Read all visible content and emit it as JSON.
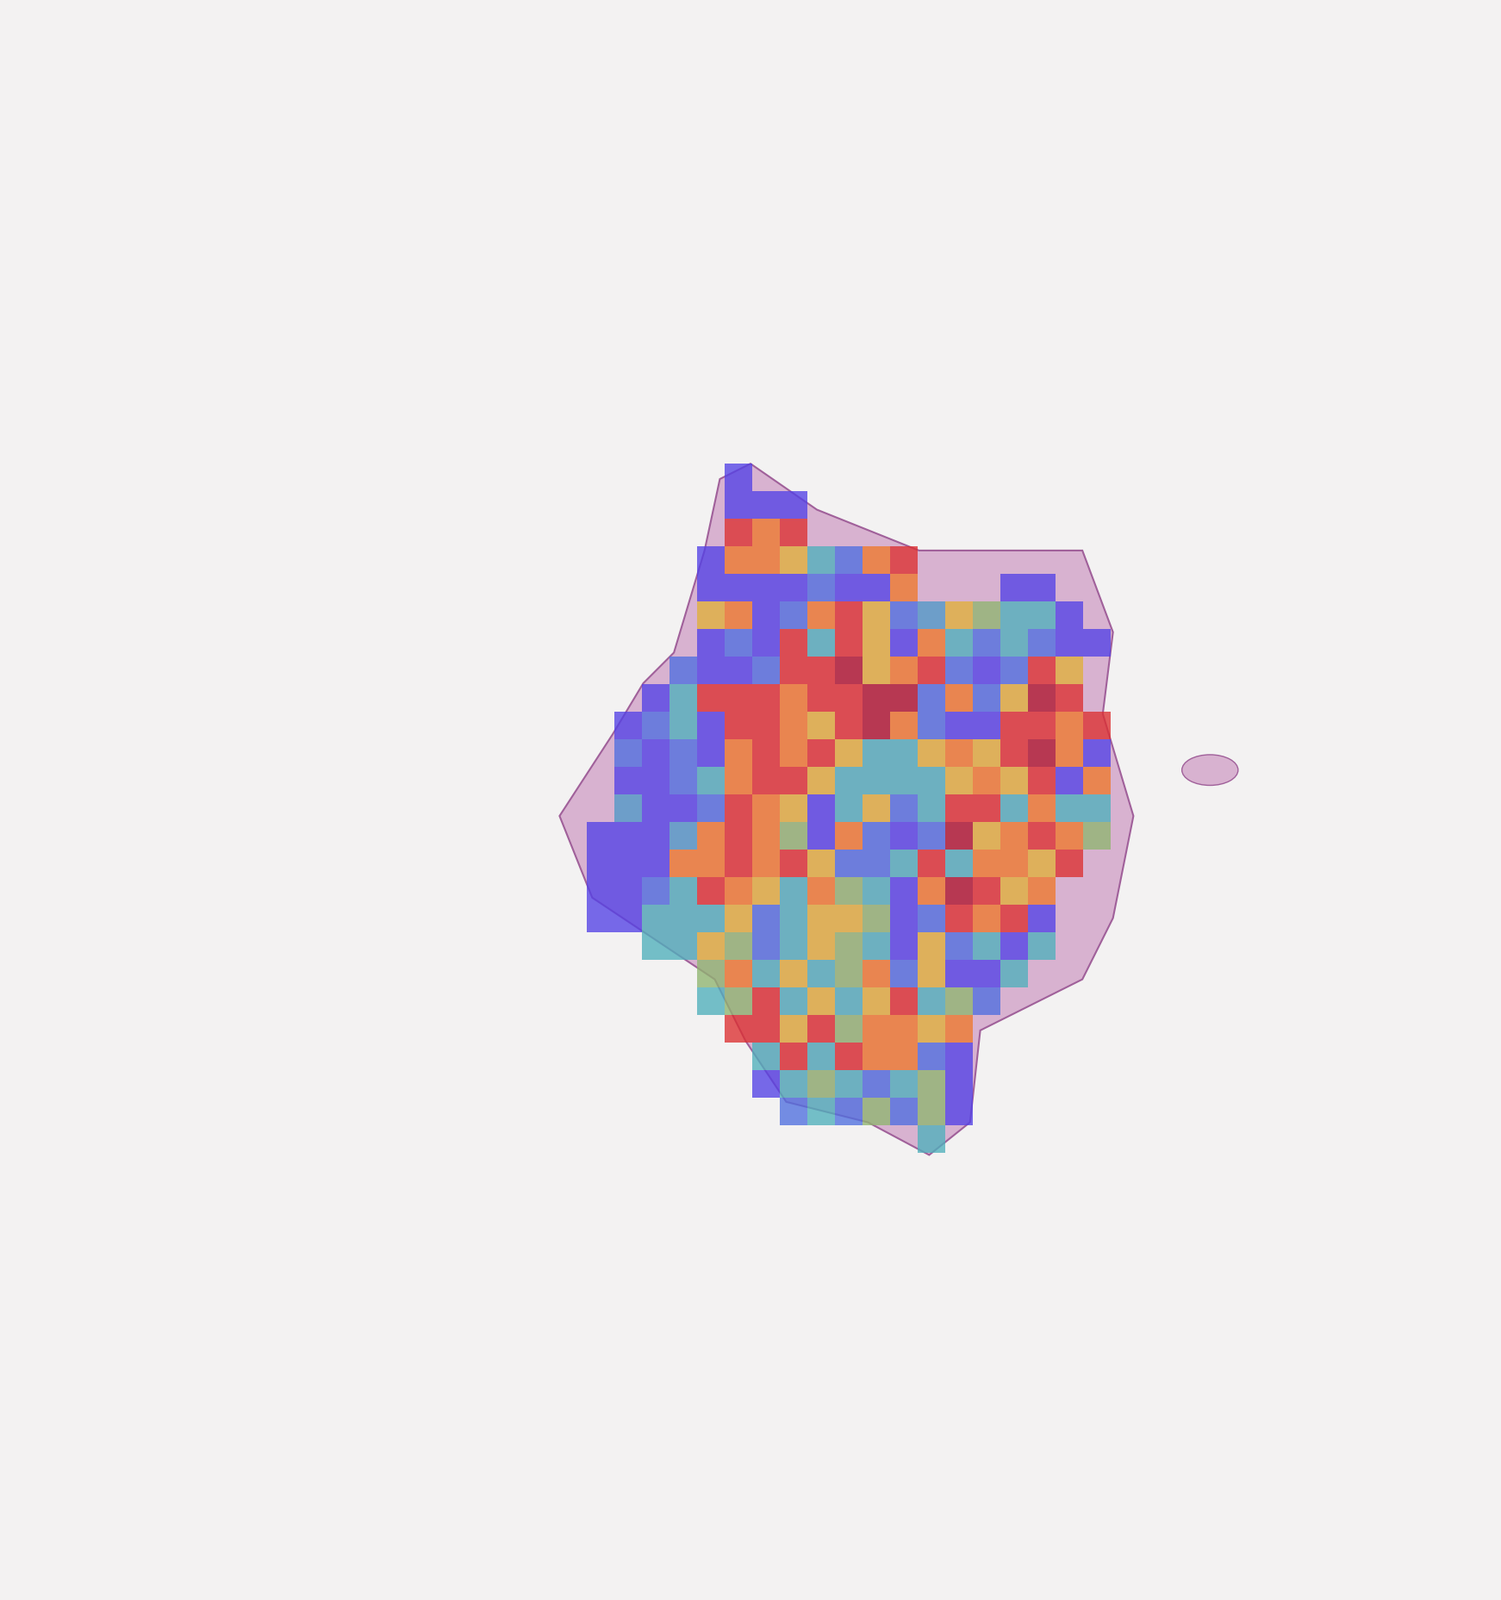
{
  "chart_data": {
    "type": "heatmap",
    "tick_labels": false,
    "range": [
      0,
      1
    ],
    "cells": [
      [
        null,
        null,
        null,
        null,
        null,
        0.05,
        null,
        null,
        null,
        null,
        null,
        null,
        null,
        null,
        null,
        null,
        null,
        null,
        null,
        null
      ],
      [
        null,
        null,
        null,
        null,
        null,
        0.05,
        0.05,
        0.05,
        null,
        null,
        null,
        null,
        null,
        null,
        null,
        null,
        null,
        null,
        null,
        null
      ],
      [
        null,
        null,
        null,
        null,
        null,
        0.85,
        0.72,
        0.85,
        null,
        null,
        null,
        null,
        null,
        null,
        null,
        null,
        null,
        null,
        null,
        null
      ],
      [
        null,
        null,
        null,
        null,
        0.05,
        0.72,
        0.72,
        0.6,
        0.35,
        0.2,
        0.72,
        0.85,
        null,
        null,
        null,
        null,
        null,
        null,
        null,
        null
      ],
      [
        null,
        null,
        null,
        null,
        0.05,
        0.05,
        0.05,
        0.05,
        0.2,
        0.05,
        0.05,
        0.72,
        null,
        null,
        null,
        0.05,
        0.05,
        null,
        null,
        null
      ],
      [
        null,
        null,
        null,
        null,
        0.6,
        0.72,
        0.05,
        0.2,
        0.72,
        0.85,
        0.6,
        0.2,
        0.3,
        0.6,
        0.45,
        0.35,
        0.35,
        0.05,
        null,
        null
      ],
      [
        null,
        null,
        null,
        null,
        0.05,
        0.2,
        0.05,
        0.85,
        0.35,
        0.85,
        0.6,
        0.05,
        0.72,
        0.35,
        0.2,
        0.35,
        0.2,
        0.05,
        0.05,
        null
      ],
      [
        null,
        null,
        null,
        0.2,
        0.05,
        0.05,
        0.2,
        0.85,
        0.85,
        0.97,
        0.6,
        0.72,
        0.85,
        0.2,
        0.05,
        0.2,
        0.85,
        0.6,
        null,
        null
      ],
      [
        null,
        null,
        0.05,
        0.35,
        0.85,
        0.85,
        0.85,
        0.72,
        0.85,
        0.85,
        0.97,
        0.97,
        0.2,
        0.72,
        0.2,
        0.6,
        0.97,
        0.85,
        null,
        null
      ],
      [
        null,
        0.05,
        0.2,
        0.35,
        0.05,
        0.85,
        0.85,
        0.72,
        0.6,
        0.85,
        0.97,
        0.72,
        0.2,
        0.05,
        0.05,
        0.85,
        0.85,
        0.72,
        0.85,
        null
      ],
      [
        null,
        0.2,
        0.05,
        0.2,
        0.05,
        0.72,
        0.85,
        0.72,
        0.85,
        0.6,
        0.35,
        0.35,
        0.6,
        0.72,
        0.6,
        0.85,
        0.97,
        0.72,
        0.05,
        null
      ],
      [
        null,
        0.05,
        0.05,
        0.2,
        0.35,
        0.72,
        0.85,
        0.85,
        0.6,
        0.35,
        0.35,
        0.35,
        0.35,
        0.6,
        0.72,
        0.6,
        0.85,
        0.05,
        0.72,
        null
      ],
      [
        null,
        0.3,
        0.05,
        0.05,
        0.2,
        0.85,
        0.72,
        0.6,
        0.05,
        0.35,
        0.6,
        0.2,
        0.35,
        0.85,
        0.85,
        0.35,
        0.72,
        0.35,
        0.35,
        null
      ],
      [
        0.05,
        0.05,
        0.05,
        0.3,
        0.72,
        0.85,
        0.72,
        0.45,
        0.05,
        0.72,
        0.2,
        0.05,
        0.2,
        0.97,
        0.6,
        0.72,
        0.85,
        0.72,
        0.45,
        null
      ],
      [
        0.05,
        0.05,
        0.05,
        0.72,
        0.72,
        0.85,
        0.72,
        0.85,
        0.6,
        0.2,
        0.2,
        0.35,
        0.85,
        0.35,
        0.72,
        0.72,
        0.6,
        0.85,
        null,
        null
      ],
      [
        0.05,
        0.05,
        0.2,
        0.35,
        0.85,
        0.72,
        0.6,
        0.35,
        0.72,
        0.45,
        0.35,
        0.05,
        0.72,
        0.97,
        0.85,
        0.6,
        0.72,
        null,
        null,
        null
      ],
      [
        0.05,
        0.05,
        0.35,
        0.35,
        0.35,
        0.6,
        0.2,
        0.35,
        0.6,
        0.6,
        0.45,
        0.05,
        0.2,
        0.85,
        0.72,
        0.85,
        0.05,
        null,
        null,
        null
      ],
      [
        null,
        null,
        0.35,
        0.35,
        0.6,
        0.45,
        0.2,
        0.35,
        0.6,
        0.45,
        0.35,
        0.05,
        0.6,
        0.2,
        0.35,
        0.05,
        0.35,
        null,
        null,
        null
      ],
      [
        null,
        null,
        null,
        null,
        0.45,
        0.72,
        0.35,
        0.6,
        0.35,
        0.45,
        0.72,
        0.2,
        0.6,
        0.05,
        0.05,
        0.35,
        null,
        null,
        null,
        null
      ],
      [
        null,
        null,
        null,
        null,
        0.35,
        0.45,
        0.85,
        0.35,
        0.6,
        0.35,
        0.6,
        0.85,
        0.35,
        0.45,
        0.2,
        null,
        null,
        null,
        null,
        null
      ],
      [
        null,
        null,
        null,
        null,
        null,
        0.85,
        0.85,
        0.6,
        0.85,
        0.45,
        0.72,
        0.72,
        0.6,
        0.72,
        null,
        null,
        null,
        null,
        null,
        null
      ],
      [
        null,
        null,
        null,
        null,
        null,
        null,
        0.35,
        0.85,
        0.35,
        0.85,
        0.72,
        0.72,
        0.2,
        0.05,
        null,
        null,
        null,
        null,
        null,
        null
      ],
      [
        null,
        null,
        null,
        null,
        null,
        null,
        0.05,
        0.35,
        0.45,
        0.35,
        0.2,
        0.35,
        0.45,
        0.05,
        null,
        null,
        null,
        null,
        null,
        null
      ],
      [
        null,
        null,
        null,
        null,
        null,
        null,
        null,
        0.2,
        0.35,
        0.2,
        0.45,
        0.2,
        0.45,
        0.05,
        null,
        null,
        null,
        null,
        null,
        null
      ],
      [
        null,
        null,
        null,
        null,
        null,
        null,
        null,
        null,
        null,
        null,
        null,
        null,
        0.35,
        null,
        null,
        null,
        null,
        null,
        null,
        null
      ]
    ]
  }
}
